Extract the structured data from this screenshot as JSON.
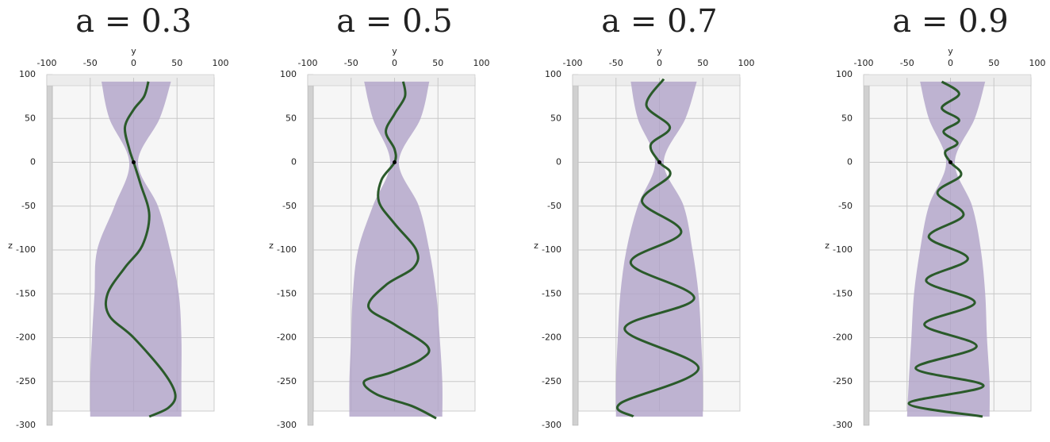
{
  "chart_data": [
    {
      "type": "line",
      "title": "a = 0.3",
      "xlabel": "y",
      "ylabel": "z",
      "xlim": [
        -100,
        100
      ],
      "xticks": [
        -100,
        -50,
        0,
        50,
        100
      ],
      "ylim": [
        -300,
        100
      ],
      "yticks": [
        100,
        50,
        0,
        -50,
        -100,
        -150,
        -200,
        -250,
        -300
      ],
      "grid": true,
      "series": [
        {
          "color": "#2a5a2a",
          "x": [
            17,
            12,
            0,
            -10,
            -5,
            0,
            8,
            18,
            10,
            -10,
            -30,
            -28,
            0,
            35,
            48,
            40,
            18
          ],
          "values": [
            92,
            75,
            60,
            40,
            15,
            0,
            -25,
            -60,
            -95,
            -120,
            -150,
            -175,
            -200,
            -240,
            -265,
            -280,
            -290
          ]
        }
      ],
      "envelope": {
        "color": "#b0a2c8",
        "z": [
          92,
          50,
          0,
          -50,
          -100,
          -150,
          -200,
          -250,
          -290
        ],
        "left": [
          -37,
          -28,
          -5,
          -22,
          -42,
          -45,
          -48,
          -50,
          -50
        ],
        "right": [
          43,
          30,
          5,
          28,
          42,
          52,
          55,
          55,
          55
        ]
      },
      "marker": {
        "x": 0,
        "z": 0,
        "color": "#000000"
      }
    },
    {
      "type": "line",
      "title": "a = 0.5",
      "xlabel": "y",
      "ylabel": "z",
      "xlim": [
        -100,
        100
      ],
      "xticks": [
        -100,
        -50,
        0,
        50,
        100
      ],
      "ylim": [
        -300,
        100
      ],
      "yticks": [
        100,
        50,
        0,
        -50,
        -100,
        -150,
        -200,
        -250,
        -300
      ],
      "grid": true,
      "series": [
        {
          "color": "#2a5a2a",
          "x": [
            10,
            12,
            0,
            -10,
            0,
            0,
            -15,
            -18,
            0,
            25,
            22,
            -10,
            -30,
            0,
            38,
            30,
            -5,
            -35,
            -20,
            20,
            48
          ],
          "values": [
            92,
            75,
            55,
            35,
            15,
            0,
            -20,
            -45,
            -70,
            -100,
            -120,
            -140,
            -165,
            -185,
            -210,
            -225,
            -240,
            -250,
            -265,
            -278,
            -292
          ]
        }
      ],
      "envelope": {
        "color": "#b0a2c8",
        "z": [
          92,
          50,
          0,
          -50,
          -100,
          -150,
          -200,
          -250,
          -290
        ],
        "left": [
          -35,
          -25,
          -5,
          -25,
          -42,
          -48,
          -50,
          -52,
          -52
        ],
        "right": [
          40,
          30,
          5,
          28,
          40,
          48,
          52,
          55,
          55
        ]
      },
      "marker": {
        "x": 0,
        "z": 0,
        "color": "#000000"
      }
    },
    {
      "type": "line",
      "title": "a = 0.7",
      "xlabel": "y",
      "ylabel": "z",
      "xlim": [
        -100,
        100
      ],
      "xticks": [
        -100,
        -50,
        0,
        50,
        100
      ],
      "ylim": [
        -300,
        100
      ],
      "yticks": [
        100,
        50,
        0,
        -50,
        -100,
        -150,
        -200,
        -250,
        -300
      ],
      "grid": true,
      "series": [
        {
          "color": "#2a5a2a",
          "x": [
            5,
            -15,
            12,
            -10,
            0,
            12,
            -20,
            25,
            -33,
            40,
            -40,
            45,
            -45,
            -30
          ],
          "values": [
            95,
            65,
            40,
            20,
            0,
            -15,
            -45,
            -80,
            -115,
            -155,
            -190,
            -235,
            -275,
            -290
          ]
        }
      ],
      "envelope": {
        "color": "#b0a2c8",
        "z": [
          92,
          50,
          0,
          -50,
          -100,
          -150,
          -200,
          -250,
          -290
        ],
        "left": [
          -33,
          -25,
          -5,
          -25,
          -38,
          -45,
          -48,
          -50,
          -50
        ],
        "right": [
          43,
          30,
          5,
          28,
          38,
          45,
          48,
          50,
          50
        ]
      },
      "marker": {
        "x": 0,
        "z": 0,
        "color": "#000000"
      }
    },
    {
      "type": "line",
      "title": "a = 0.9",
      "xlabel": "y",
      "ylabel": "z",
      "xlim": [
        -100,
        100
      ],
      "xticks": [
        -100,
        -50,
        0,
        50,
        100
      ],
      "ylim": [
        -300,
        100
      ],
      "yticks": [
        100,
        50,
        0,
        -50,
        -100,
        -150,
        -200,
        -250,
        -300
      ],
      "grid": true,
      "series": [
        {
          "color": "#2a5a2a",
          "x": [
            -10,
            10,
            -10,
            10,
            -8,
            8,
            -6,
            0,
            12,
            -15,
            15,
            -25,
            20,
            -28,
            28,
            -30,
            30,
            -40,
            38,
            -48,
            37
          ],
          "values": [
            92,
            78,
            62,
            48,
            35,
            22,
            12,
            0,
            -15,
            -35,
            -60,
            -85,
            -110,
            -135,
            -160,
            -185,
            -210,
            -235,
            -255,
            -275,
            -290
          ]
        }
      ],
      "envelope": {
        "color": "#b0a2c8",
        "z": [
          92,
          50,
          0,
          -50,
          -100,
          -150,
          -200,
          -250,
          -290
        ],
        "left": [
          -35,
          -25,
          -5,
          -25,
          -35,
          -42,
          -45,
          -48,
          -50
        ],
        "right": [
          40,
          28,
          5,
          25,
          35,
          40,
          42,
          45,
          45
        ]
      },
      "marker": {
        "x": 0,
        "z": 0,
        "color": "#000000"
      }
    }
  ]
}
